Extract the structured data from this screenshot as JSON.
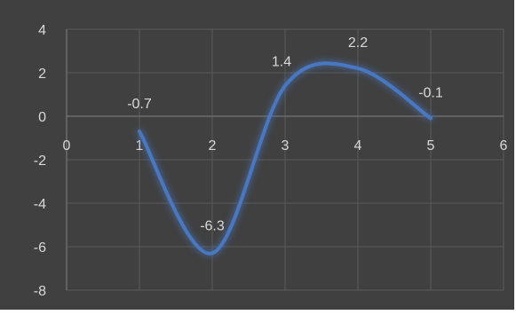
{
  "chart_data": {
    "type": "scatter",
    "smooth": true,
    "title": "",
    "xlabel": "",
    "ylabel": "",
    "xlim": [
      0,
      6
    ],
    "ylim": [
      -8,
      4
    ],
    "x_ticks": [
      0,
      1,
      2,
      3,
      4,
      5,
      6
    ],
    "y_ticks": [
      4,
      2,
      0,
      -2,
      -4,
      -6,
      -8
    ],
    "x_tick_labels": [
      "0",
      "1",
      "2",
      "3",
      "4",
      "5",
      "6"
    ],
    "y_tick_labels": [
      "4",
      "2",
      "0",
      "-2",
      "-4",
      "-6",
      "-8"
    ],
    "grid": true,
    "series": [
      {
        "x": [
          1,
          2,
          3,
          4,
          5
        ],
        "y": [
          -0.7,
          -6.3,
          1.4,
          2.2,
          -0.1
        ],
        "data_labels": [
          "-0.7",
          "-6.3",
          "1.4",
          "2.2",
          "-0.1"
        ],
        "color": "#4a78c2"
      }
    ],
    "background": "#404040"
  }
}
